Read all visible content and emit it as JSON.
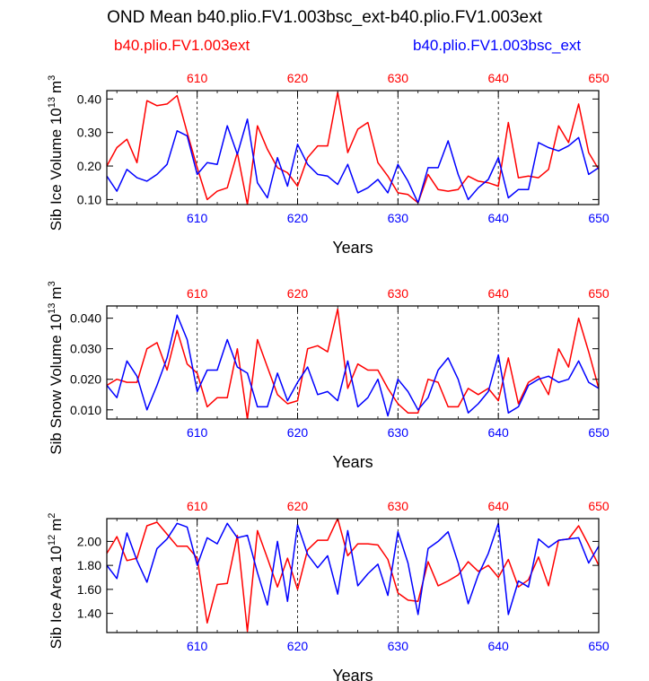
{
  "title": "OND Mean b40.plio.FV1.003bsc_ext-b40.plio.FV1.003ext",
  "legend": {
    "red": "b40.plio.FV1.003ext",
    "blue": "b40.plio.FV1.003bsc_ext"
  },
  "colors": {
    "red": "#ff0000",
    "blue": "#0000ff",
    "axis": "#000000"
  },
  "chart_data": [
    {
      "type": "line",
      "ylabel_base": "Sib Ice Volume 10",
      "ylabel_exp": "13",
      "ylabel_unit_base": "m",
      "ylabel_unit_exp": "3",
      "xlabel": "Years",
      "xlim": [
        601,
        650
      ],
      "ylim": [
        0.085,
        0.425
      ],
      "x_ticks": [
        610,
        620,
        630,
        640,
        650
      ],
      "x_tick_labels": [
        "610",
        "620",
        "630",
        "640",
        "650"
      ],
      "y_ticks": [
        0.1,
        0.2,
        0.3,
        0.4
      ],
      "y_tick_labels": [
        "0.10",
        "0.20",
        "0.30",
        "0.40"
      ],
      "x": [
        601,
        602,
        603,
        604,
        605,
        606,
        607,
        608,
        609,
        610,
        611,
        612,
        613,
        614,
        615,
        616,
        617,
        618,
        619,
        620,
        621,
        622,
        623,
        624,
        625,
        626,
        627,
        628,
        629,
        630,
        631,
        632,
        633,
        634,
        635,
        636,
        637,
        638,
        639,
        640,
        641,
        642,
        643,
        644,
        645,
        646,
        647,
        648,
        649,
        650
      ],
      "series": [
        {
          "name": "b40.plio.FV1.003ext",
          "color": "red",
          "values": [
            0.2,
            0.255,
            0.28,
            0.21,
            0.395,
            0.38,
            0.385,
            0.41,
            0.3,
            0.195,
            0.1,
            0.125,
            0.135,
            0.24,
            0.085,
            0.32,
            0.25,
            0.195,
            0.18,
            0.14,
            0.225,
            0.26,
            0.26,
            0.42,
            0.24,
            0.31,
            0.33,
            0.21,
            0.17,
            0.12,
            0.115,
            0.09,
            0.175,
            0.13,
            0.125,
            0.13,
            0.17,
            0.155,
            0.15,
            0.14,
            0.33,
            0.165,
            0.17,
            0.165,
            0.19,
            0.32,
            0.27,
            0.385,
            0.24,
            0.19
          ]
        },
        {
          "name": "b40.plio.FV1.003bsc_ext",
          "color": "blue",
          "values": [
            0.17,
            0.125,
            0.19,
            0.165,
            0.155,
            0.175,
            0.205,
            0.305,
            0.29,
            0.175,
            0.21,
            0.205,
            0.32,
            0.235,
            0.34,
            0.15,
            0.105,
            0.225,
            0.14,
            0.265,
            0.205,
            0.175,
            0.17,
            0.145,
            0.205,
            0.12,
            0.135,
            0.16,
            0.12,
            0.205,
            0.155,
            0.09,
            0.195,
            0.195,
            0.275,
            0.175,
            0.1,
            0.135,
            0.16,
            0.225,
            0.105,
            0.13,
            0.13,
            0.27,
            0.255,
            0.245,
            0.26,
            0.285,
            0.175,
            0.195
          ]
        }
      ]
    },
    {
      "type": "line",
      "ylabel_base": "Sib Snow Volume 10",
      "ylabel_exp": "13",
      "ylabel_unit_base": "m",
      "ylabel_unit_exp": "3",
      "xlabel": "Years",
      "xlim": [
        601,
        650
      ],
      "ylim": [
        0.007,
        0.044
      ],
      "x_ticks": [
        610,
        620,
        630,
        640,
        650
      ],
      "x_tick_labels": [
        "610",
        "620",
        "630",
        "640",
        "650"
      ],
      "y_ticks": [
        0.01,
        0.02,
        0.03,
        0.04
      ],
      "y_tick_labels": [
        "0.010",
        "0.020",
        "0.030",
        "0.040"
      ],
      "x": [
        601,
        602,
        603,
        604,
        605,
        606,
        607,
        608,
        609,
        610,
        611,
        612,
        613,
        614,
        615,
        616,
        617,
        618,
        619,
        620,
        621,
        622,
        623,
        624,
        625,
        626,
        627,
        628,
        629,
        630,
        631,
        632,
        633,
        634,
        635,
        636,
        637,
        638,
        639,
        640,
        641,
        642,
        643,
        644,
        645,
        646,
        647,
        648,
        649,
        650
      ],
      "series": [
        {
          "name": "b40.plio.FV1.003ext",
          "color": "red",
          "values": [
            0.018,
            0.02,
            0.019,
            0.019,
            0.03,
            0.032,
            0.023,
            0.036,
            0.025,
            0.022,
            0.011,
            0.014,
            0.014,
            0.03,
            0.007,
            0.033,
            0.024,
            0.015,
            0.012,
            0.013,
            0.03,
            0.031,
            0.029,
            0.043,
            0.017,
            0.025,
            0.023,
            0.023,
            0.017,
            0.012,
            0.009,
            0.009,
            0.02,
            0.019,
            0.011,
            0.011,
            0.017,
            0.015,
            0.017,
            0.013,
            0.027,
            0.012,
            0.019,
            0.021,
            0.015,
            0.03,
            0.024,
            0.04,
            0.029,
            0.017
          ]
        },
        {
          "name": "b40.plio.FV1.003bsc_ext",
          "color": "blue",
          "values": [
            0.018,
            0.014,
            0.026,
            0.021,
            0.01,
            0.018,
            0.027,
            0.041,
            0.033,
            0.016,
            0.023,
            0.023,
            0.033,
            0.024,
            0.022,
            0.011,
            0.011,
            0.022,
            0.013,
            0.019,
            0.024,
            0.015,
            0.016,
            0.013,
            0.026,
            0.011,
            0.014,
            0.02,
            0.008,
            0.02,
            0.016,
            0.01,
            0.014,
            0.023,
            0.027,
            0.02,
            0.009,
            0.012,
            0.016,
            0.028,
            0.009,
            0.011,
            0.018,
            0.02,
            0.021,
            0.019,
            0.02,
            0.026,
            0.019,
            0.017
          ]
        }
      ]
    },
    {
      "type": "line",
      "ylabel_base": "Sib Ice Area 10",
      "ylabel_exp": "12",
      "ylabel_unit_base": "m",
      "ylabel_unit_exp": "2",
      "xlabel": "Years",
      "xlim": [
        601,
        650
      ],
      "ylim": [
        1.24,
        2.19
      ],
      "x_ticks": [
        610,
        620,
        630,
        640,
        650
      ],
      "x_tick_labels": [
        "610",
        "620",
        "630",
        "640",
        "650"
      ],
      "y_ticks": [
        1.4,
        1.6,
        1.8,
        2.0
      ],
      "y_tick_labels": [
        "1.40",
        "1.60",
        "1.80",
        "2.00"
      ],
      "x": [
        601,
        602,
        603,
        604,
        605,
        606,
        607,
        608,
        609,
        610,
        611,
        612,
        613,
        614,
        615,
        616,
        617,
        618,
        619,
        620,
        621,
        622,
        623,
        624,
        625,
        626,
        627,
        628,
        629,
        630,
        631,
        632,
        633,
        634,
        635,
        636,
        637,
        638,
        639,
        640,
        641,
        642,
        643,
        644,
        645,
        646,
        647,
        648,
        649,
        650
      ],
      "series": [
        {
          "name": "b40.plio.FV1.003ext",
          "color": "red",
          "values": [
            1.9,
            2.04,
            1.84,
            1.86,
            2.13,
            2.16,
            2.06,
            1.96,
            1.96,
            1.86,
            1.32,
            1.64,
            1.65,
            2.05,
            1.25,
            2.09,
            1.86,
            1.62,
            1.86,
            1.6,
            1.93,
            2.01,
            2.01,
            2.19,
            1.88,
            1.98,
            1.98,
            1.97,
            1.85,
            1.57,
            1.51,
            1.5,
            1.83,
            1.63,
            1.67,
            1.72,
            1.83,
            1.75,
            1.8,
            1.7,
            1.85,
            1.62,
            1.68,
            1.87,
            1.63,
            2.01,
            2.02,
            2.13,
            1.97,
            1.8
          ]
        },
        {
          "name": "b40.plio.FV1.003bsc_ext",
          "color": "blue",
          "values": [
            1.8,
            1.69,
            2.07,
            1.84,
            1.66,
            1.94,
            2.02,
            2.15,
            2.12,
            1.8,
            2.03,
            1.98,
            2.15,
            2.03,
            2.05,
            1.74,
            1.47,
            2.0,
            1.5,
            2.14,
            1.89,
            1.78,
            1.88,
            1.56,
            2.09,
            1.63,
            1.73,
            1.81,
            1.55,
            2.08,
            1.82,
            1.39,
            1.94,
            2.0,
            2.08,
            1.82,
            1.48,
            1.72,
            1.9,
            2.15,
            1.39,
            1.67,
            1.62,
            2.02,
            1.95,
            2.01,
            2.02,
            2.03,
            1.82,
            1.96
          ]
        }
      ]
    }
  ]
}
